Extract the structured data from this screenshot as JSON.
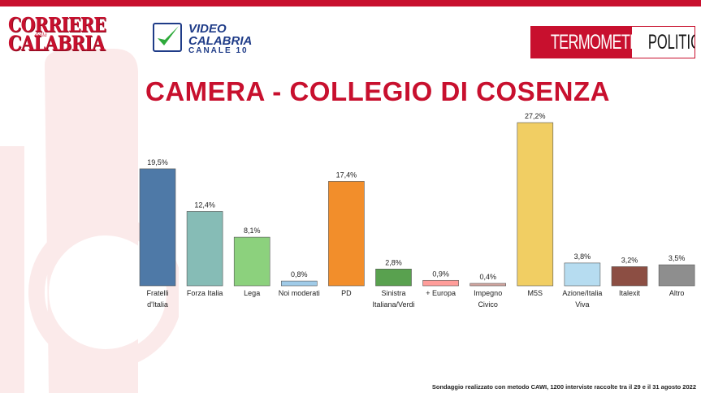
{
  "header": {
    "logo_corriere_line1": "CORRIERE",
    "logo_corriere_della": "della",
    "logo_corriere_line2": "CALABRIA",
    "logo_video_line1": "VIDEO",
    "logo_video_line2": "CALABRIA",
    "logo_video_line3": "CANALE 10",
    "logo_tp_part1": "TERMOMETRO",
    "logo_tp_part2": "POLITICO"
  },
  "colors": {
    "brand_red": "#c8102e",
    "video_blue": "#1f3c88",
    "video_check": "#2eaa3b"
  },
  "chart_data": {
    "type": "bar",
    "title": "CAMERA - COLLEGIO DI COSENZA",
    "ylim": [
      0,
      27.2
    ],
    "grid": false,
    "legend": "none",
    "categories": [
      [
        "Fratelli",
        "d'Italia"
      ],
      [
        "Forza Italia"
      ],
      [
        "Lega"
      ],
      [
        "Noi moderati"
      ],
      [
        "PD"
      ],
      [
        "Sinistra",
        "Italiana/Verdi"
      ],
      [
        "+ Europa"
      ],
      [
        "Impegno",
        "Civico"
      ],
      [
        "M5S"
      ],
      [
        "Azione/Italia",
        "Viva"
      ],
      [
        "Italexit"
      ],
      [
        "Altro"
      ]
    ],
    "values": [
      19.5,
      12.4,
      8.1,
      0.8,
      17.4,
      2.8,
      0.9,
      0.4,
      27.2,
      3.8,
      3.2,
      3.5
    ],
    "value_labels": [
      "19,5%",
      "12,4%",
      "8,1%",
      "0,8%",
      "17,4%",
      "2,8%",
      "0,9%",
      "0,4%",
      "27,2%",
      "3,8%",
      "3,2%",
      "3,5%"
    ],
    "bar_colors": [
      "#4e79a7",
      "#86bcb6",
      "#8cd17d",
      "#a0cbe8",
      "#f28e2b",
      "#59a14f",
      "#ff9d9a",
      "#d4a6a0",
      "#f1ce63",
      "#b6dcf0",
      "#8c4e43",
      "#8e8e8e"
    ]
  },
  "footnote": "Sondaggio realizzato con metodo CAWI, 1200 interviste raccolte tra il 29 e il 31 agosto 2022"
}
